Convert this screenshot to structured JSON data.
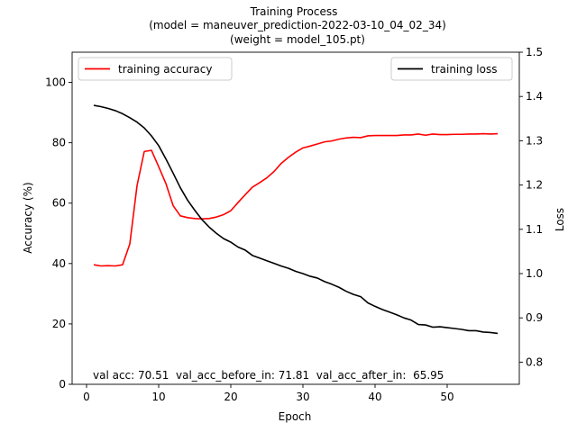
{
  "chart_data": {
    "type": "line",
    "title_lines": [
      "Training Process",
      "(model = maneuver_prediction-2022-03-10_04_02_34)",
      "(weight = model_105.pt)"
    ],
    "xlabel": "Epoch",
    "ylabel_left": "Accuracy (%)",
    "ylabel_right": "Loss",
    "xlim": [
      -2,
      60
    ],
    "ylim_left": [
      0,
      110
    ],
    "ylim_right": [
      0.75,
      1.5
    ],
    "xticks": [
      0,
      10,
      20,
      30,
      40,
      50
    ],
    "yticks_left": [
      0,
      20,
      40,
      60,
      80,
      100
    ],
    "yticks_right": [
      0.8,
      0.9,
      1.0,
      1.1,
      1.2,
      1.3,
      1.4,
      1.5
    ],
    "yticks_right_labels": [
      "0.8",
      "0.9",
      "1.0",
      "1.1",
      "1.2",
      "1.3",
      "1.4",
      "1.5"
    ],
    "grid": false,
    "legend_left": {
      "placement": "top-left",
      "label": "training accuracy",
      "color": "#ff0000"
    },
    "legend_right": {
      "placement": "top-right",
      "label": "training loss",
      "color": "#000000"
    },
    "annotation": "val acc: 70.51  val_acc_before_in: 71.81  val_acc_after_in:  65.95",
    "x": [
      1,
      2,
      3,
      4,
      5,
      6,
      7,
      8,
      9,
      10,
      11,
      12,
      13,
      14,
      15,
      16,
      17,
      18,
      19,
      20,
      21,
      22,
      23,
      24,
      25,
      26,
      27,
      28,
      29,
      30,
      31,
      32,
      33,
      34,
      35,
      36,
      37,
      38,
      39,
      40,
      41,
      42,
      43,
      44,
      45,
      46,
      47,
      48,
      49,
      50,
      51,
      52,
      53,
      54,
      55,
      56,
      57
    ],
    "series": [
      {
        "name": "training accuracy",
        "axis": "left",
        "color": "#ff0000",
        "values": [
          39.6,
          39.2,
          39.3,
          39.2,
          39.6,
          46.5,
          65.8,
          77.1,
          77.5,
          72.1,
          66.5,
          59.2,
          55.8,
          55.2,
          54.9,
          54.8,
          54.9,
          55.4,
          56.2,
          57.5,
          60.2,
          62.8,
          65.3,
          66.8,
          68.4,
          70.5,
          73.2,
          75.2,
          76.9,
          78.3,
          78.9,
          79.6,
          80.3,
          80.6,
          81.2,
          81.6,
          81.8,
          81.7,
          82.3,
          82.4,
          82.4,
          82.4,
          82.4,
          82.6,
          82.6,
          82.9,
          82.5,
          82.9,
          82.7,
          82.7,
          82.8,
          82.8,
          82.9,
          82.9,
          83.0,
          82.9,
          83.0
        ]
      },
      {
        "name": "training loss",
        "axis": "right",
        "color": "#000000",
        "values": [
          1.38,
          1.377,
          1.373,
          1.368,
          1.361,
          1.352,
          1.342,
          1.329,
          1.311,
          1.289,
          1.259,
          1.227,
          1.194,
          1.166,
          1.143,
          1.122,
          1.105,
          1.091,
          1.079,
          1.071,
          1.06,
          1.053,
          1.041,
          1.035,
          1.029,
          1.023,
          1.017,
          1.012,
          1.005,
          1.0,
          0.994,
          0.99,
          0.982,
          0.976,
          0.969,
          0.96,
          0.953,
          0.948,
          0.934,
          0.926,
          0.919,
          0.913,
          0.907,
          0.9,
          0.895,
          0.885,
          0.884,
          0.879,
          0.88,
          0.878,
          0.876,
          0.874,
          0.871,
          0.871,
          0.868,
          0.867,
          0.865
        ]
      }
    ]
  }
}
